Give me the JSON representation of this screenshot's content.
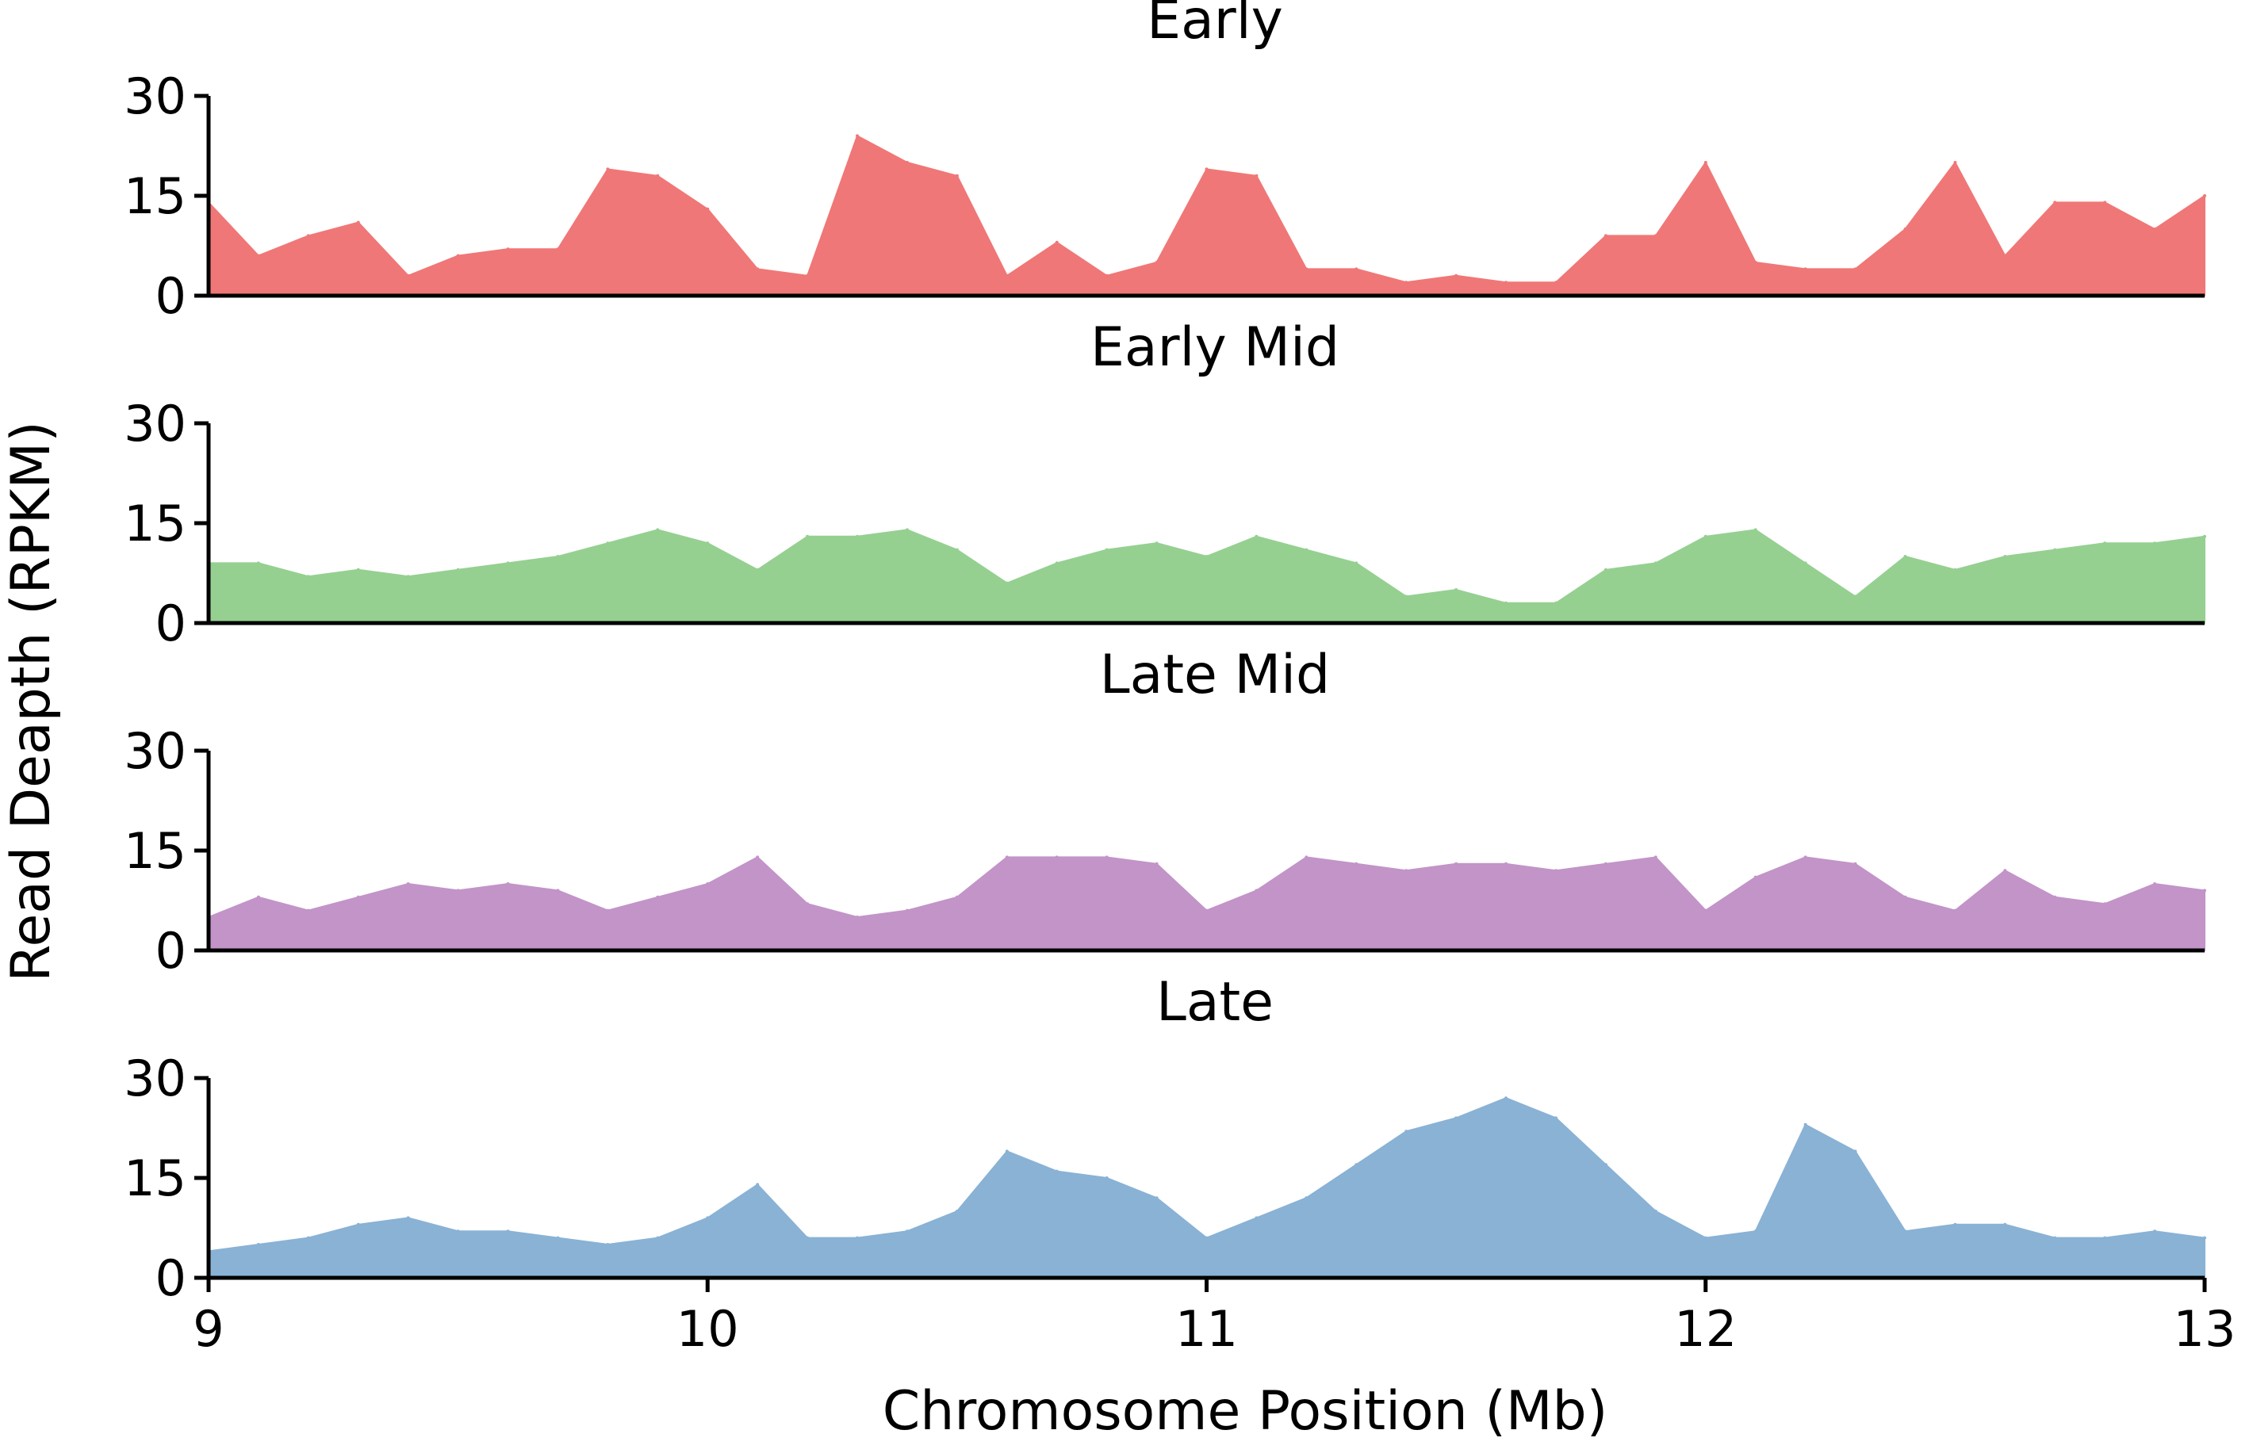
{
  "chart_data": {
    "type": "area",
    "xlabel": "Chromosome Position (Mb)",
    "ylabel": "Read Deapth (RPKM)",
    "xlim": [
      9,
      13
    ],
    "ylim": [
      0,
      30
    ],
    "x_ticks": [
      "9",
      "10",
      "11",
      "12",
      "13"
    ],
    "y_ticks": [
      "0",
      "15",
      "30"
    ],
    "grid": false,
    "x": [
      9.0,
      9.1,
      9.2,
      9.3,
      9.4,
      9.5,
      9.6,
      9.7,
      9.8,
      9.9,
      10.0,
      10.1,
      10.2,
      10.3,
      10.4,
      10.5,
      10.6,
      10.7,
      10.8,
      10.9,
      11.0,
      11.1,
      11.2,
      11.3,
      11.4,
      11.5,
      11.6,
      11.7,
      11.8,
      11.9,
      12.0,
      12.1,
      12.2,
      12.3,
      12.4,
      12.5,
      12.6,
      12.7,
      12.8,
      12.9,
      13.0
    ],
    "panels": [
      {
        "title": "Early",
        "color": "#f07777",
        "values": [
          14,
          6,
          9,
          11,
          3,
          6,
          7,
          7,
          19,
          18,
          13,
          4,
          3,
          24,
          20,
          18,
          3,
          8,
          3,
          5,
          19,
          18,
          4,
          4,
          2,
          3,
          2,
          2,
          9,
          9,
          20,
          5,
          4,
          4,
          10,
          20,
          6,
          14,
          14,
          10,
          15
        ]
      },
      {
        "title": "Early Mid",
        "color": "#95d091",
        "values": [
          9,
          9,
          7,
          8,
          7,
          8,
          9,
          10,
          12,
          14,
          12,
          8,
          13,
          13,
          14,
          11,
          6,
          9,
          11,
          12,
          10,
          13,
          11,
          9,
          4,
          5,
          3,
          3,
          8,
          9,
          13,
          14,
          9,
          4,
          10,
          8,
          10,
          11,
          12,
          12,
          13
        ]
      },
      {
        "title": "Late Mid",
        "color": "#c294c8",
        "values": [
          5,
          8,
          6,
          8,
          10,
          9,
          10,
          9,
          6,
          8,
          10,
          14,
          7,
          5,
          6,
          8,
          14,
          14,
          14,
          13,
          6,
          9,
          14,
          13,
          12,
          13,
          13,
          12,
          13,
          14,
          6,
          11,
          14,
          13,
          8,
          6,
          12,
          8,
          7,
          10,
          9
        ]
      },
      {
        "title": "Late",
        "color": "#89b2d5",
        "values": [
          4,
          5,
          6,
          8,
          9,
          7,
          7,
          6,
          5,
          6,
          9,
          14,
          6,
          6,
          7,
          10,
          19,
          16,
          15,
          12,
          6,
          9,
          12,
          17,
          22,
          24,
          27,
          24,
          17,
          10,
          6,
          7,
          23,
          19,
          7,
          8,
          8,
          6,
          6,
          7,
          6
        ]
      }
    ]
  }
}
